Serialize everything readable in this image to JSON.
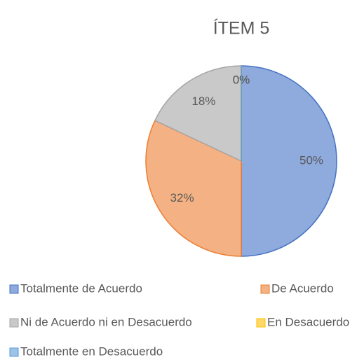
{
  "chart_data": {
    "type": "pie",
    "title": "ÍTEM 5",
    "categories": [
      "Totalmente de Acuerdo",
      "De Acuerdo",
      "Ni de Acuerdo ni en Desacuerdo",
      "En Desacuerdo",
      "Totalmente en Desacuerdo"
    ],
    "values": [
      50,
      32,
      18,
      0,
      0
    ],
    "value_labels": [
      "50%",
      "32%",
      "18%",
      "0%",
      "0%"
    ],
    "colors": [
      "#8faadc",
      "#f4b183",
      "#c9c9c9",
      "#ffd966",
      "#9dc3e6"
    ],
    "edge_colors": [
      "#4472c4",
      "#ed7d31",
      "#a5a5a5",
      "#ffc000",
      "#5b9bd5"
    ],
    "legend": "bottom"
  }
}
